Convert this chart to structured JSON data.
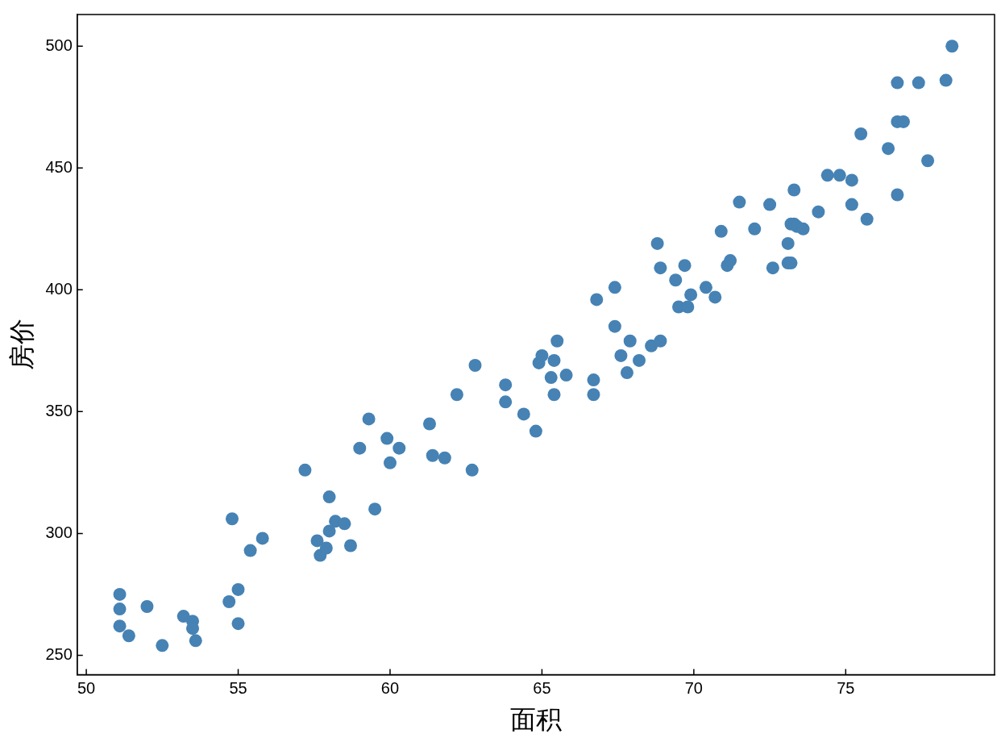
{
  "chart_data": {
    "type": "scatter",
    "xlabel": "面积",
    "ylabel": "房价",
    "xlim": [
      49.7,
      79.9
    ],
    "ylim": [
      242,
      513
    ],
    "xticks": [
      50,
      55,
      60,
      65,
      70,
      75
    ],
    "yticks": [
      250,
      300,
      350,
      400,
      450,
      500
    ],
    "grid": false,
    "legend": false,
    "marker": "circle",
    "series": [
      {
        "color": "#4682b4",
        "x": [
          51.1,
          51.1,
          51.1,
          51.4,
          52.0,
          52.5,
          53.2,
          53.5,
          53.5,
          53.6,
          54.7,
          55.0,
          55.0,
          54.8,
          55.4,
          55.8,
          57.2,
          57.6,
          57.7,
          57.9,
          58.0,
          58.0,
          58.2,
          58.5,
          58.7,
          59.0,
          59.3,
          59.5,
          59.9,
          60.0,
          60.3,
          61.3,
          61.4,
          61.8,
          62.2,
          62.7,
          62.8,
          63.8,
          63.8,
          64.4,
          64.8,
          64.9,
          65.0,
          65.3,
          65.4,
          65.4,
          65.5,
          65.8,
          66.7,
          66.7,
          66.8,
          67.4,
          67.4,
          67.6,
          67.8,
          67.9,
          68.2,
          68.6,
          68.8,
          68.9,
          68.9,
          69.4,
          69.5,
          69.7,
          69.8,
          69.9,
          70.4,
          70.7,
          70.9,
          71.1,
          71.2,
          71.5,
          72.0,
          72.5,
          72.6,
          73.1,
          73.2,
          73.1,
          73.2,
          73.3,
          73.3,
          73.4,
          73.6,
          74.1,
          74.4,
          74.8,
          75.2,
          75.2,
          75.5,
          75.7,
          76.4,
          76.7,
          76.7,
          76.7,
          76.9,
          77.4,
          77.7,
          78.3,
          78.5
        ],
        "values": [
          275,
          269,
          262,
          258,
          270,
          254,
          266,
          264,
          261,
          256,
          272,
          277,
          263,
          306,
          293,
          298,
          326,
          297,
          291,
          294,
          315,
          301,
          305,
          304,
          295,
          335,
          347,
          310,
          339,
          329,
          335,
          345,
          332,
          331,
          357,
          326,
          369,
          354,
          361,
          349,
          342,
          370,
          373,
          364,
          371,
          357,
          379,
          365,
          363,
          357,
          396,
          385,
          401,
          373,
          366,
          379,
          371,
          377,
          419,
          409,
          379,
          404,
          393,
          410,
          393,
          398,
          401,
          397,
          424,
          410,
          412,
          436,
          425,
          435,
          409,
          419,
          427,
          411,
          411,
          441,
          427,
          426,
          425,
          432,
          447,
          447,
          445,
          435,
          464,
          429,
          458,
          485,
          439,
          469,
          469,
          485,
          453,
          486,
          500
        ]
      }
    ]
  }
}
